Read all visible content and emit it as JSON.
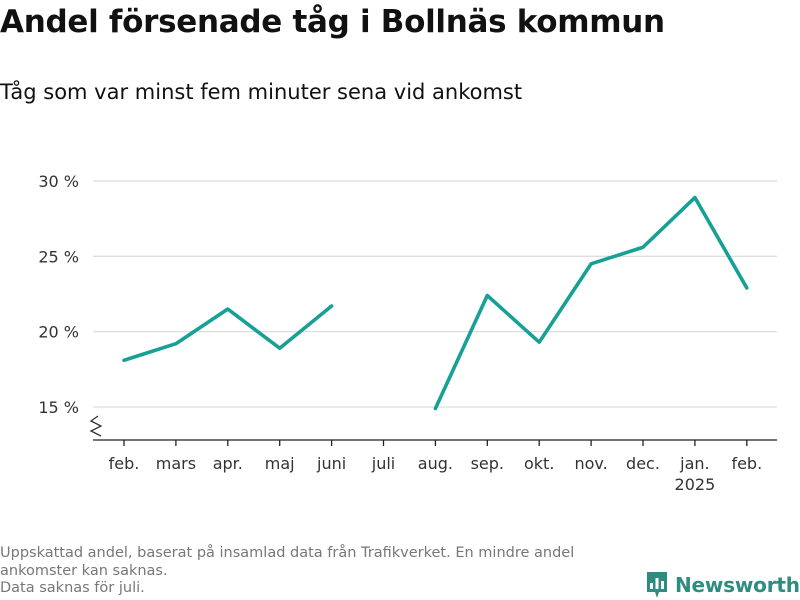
{
  "title": "Andel försenade tåg i Bollnäs kommun",
  "subtitle": "Tåg som var minst fem minuter sena vid ankomst",
  "footnote_lines": [
    "Uppskattad andel, baserat på insamlad data från Trafikverket. En mindre andel",
    "ankomster kan saknas.",
    "Data saknas för juli."
  ],
  "brand": {
    "name": "Newsworthy",
    "icon": "newsworthy-logo-icon",
    "color": "#2f8c80"
  },
  "chart_data": {
    "type": "line",
    "title": "Andel försenade tåg i Bollnäs kommun",
    "subtitle": "Tåg som var minst fem minuter sena vid ankomst",
    "categories": [
      "feb.",
      "mars",
      "apr.",
      "maj",
      "juni",
      "juli",
      "aug.",
      "sep.",
      "okt.",
      "nov.",
      "dec.",
      "jan.",
      "feb."
    ],
    "year_label": {
      "category_index": 11,
      "text": "2025"
    },
    "series": [
      {
        "values": [
          18.1,
          19.2,
          21.5,
          18.9,
          21.7,
          null,
          14.9,
          22.4,
          19.3,
          24.5,
          25.6,
          28.9,
          22.9
        ]
      }
    ],
    "ylim": [
      13,
      31
    ],
    "yticks": [
      15,
      20,
      25,
      30
    ],
    "ytick_labels": [
      "15 %",
      "20 %",
      "25 %",
      "30 %"
    ],
    "xlabel": "",
    "ylabel": "",
    "grid": true,
    "axis_break": true,
    "line_color": "#17a096",
    "grid_color": "#dddddd"
  }
}
